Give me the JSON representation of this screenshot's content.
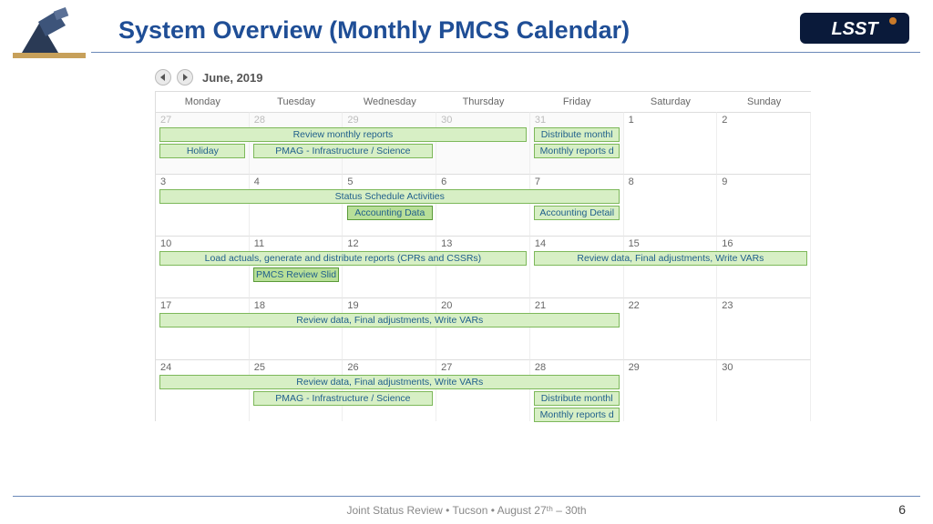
{
  "title": "System Overview (Monthly PMCS Calendar)",
  "footer": "Joint Status Review • Tucson  • August 27ᵗʰ – 30th",
  "page_number": "6",
  "calendar": {
    "month_label": "June, 2019",
    "col_unit_pct": 14.2857,
    "day_headers": [
      "Monday",
      "Tuesday",
      "Wednesday",
      "Thursday",
      "Friday",
      "Saturday",
      "Sunday"
    ],
    "weeks": [
      {
        "days": [
          {
            "n": "27",
            "off": true
          },
          {
            "n": "28",
            "off": true
          },
          {
            "n": "29",
            "off": true
          },
          {
            "n": "30",
            "off": true
          },
          {
            "n": "31",
            "off": true
          },
          {
            "n": "1",
            "off": false
          },
          {
            "n": "2",
            "off": false
          }
        ],
        "events": [
          {
            "label": "Review monthly reports",
            "start": 0,
            "span": 4,
            "row": 0,
            "dark": false
          },
          {
            "label": "Distribute monthl",
            "start": 4,
            "span": 1,
            "row": 0,
            "dark": false
          },
          {
            "label": "Holiday",
            "start": 0,
            "span": 1,
            "row": 1,
            "dark": false
          },
          {
            "label": "PMAG - Infrastructure / Science",
            "start": 1,
            "span": 2,
            "row": 1,
            "dark": false
          },
          {
            "label": "Monthly reports d",
            "start": 4,
            "span": 1,
            "row": 1,
            "dark": false
          }
        ]
      },
      {
        "days": [
          {
            "n": "3"
          },
          {
            "n": "4"
          },
          {
            "n": "5"
          },
          {
            "n": "6"
          },
          {
            "n": "7"
          },
          {
            "n": "8"
          },
          {
            "n": "9"
          }
        ],
        "events": [
          {
            "label": "Status Schedule Activities",
            "start": 0,
            "span": 5,
            "row": 0,
            "dark": false
          },
          {
            "label": "Accounting Data",
            "start": 2,
            "span": 1,
            "row": 1,
            "dark": true
          },
          {
            "label": "Accounting Detail",
            "start": 4,
            "span": 1,
            "row": 1,
            "dark": false
          }
        ]
      },
      {
        "days": [
          {
            "n": "10"
          },
          {
            "n": "11"
          },
          {
            "n": "12"
          },
          {
            "n": "13"
          },
          {
            "n": "14"
          },
          {
            "n": "15"
          },
          {
            "n": "16"
          }
        ],
        "events": [
          {
            "label": "Load actuals, generate and distribute reports (CPRs and CSSRs)",
            "start": 0,
            "span": 4,
            "row": 0,
            "dark": false
          },
          {
            "label": "Review data, Final adjustments, Write VARs",
            "start": 4,
            "span": 3,
            "row": 0,
            "dark": false
          },
          {
            "label": "PMCS Review Slid",
            "start": 1,
            "span": 1,
            "row": 1,
            "dark": true
          }
        ]
      },
      {
        "days": [
          {
            "n": "17"
          },
          {
            "n": "18"
          },
          {
            "n": "19"
          },
          {
            "n": "20"
          },
          {
            "n": "21"
          },
          {
            "n": "22"
          },
          {
            "n": "23"
          }
        ],
        "events": [
          {
            "label": "Review data, Final adjustments, Write VARs",
            "start": 0,
            "span": 5,
            "row": 0,
            "dark": false
          }
        ]
      },
      {
        "days": [
          {
            "n": "24"
          },
          {
            "n": "25"
          },
          {
            "n": "26"
          },
          {
            "n": "27"
          },
          {
            "n": "28"
          },
          {
            "n": "29"
          },
          {
            "n": "30"
          }
        ],
        "events": [
          {
            "label": "Review data, Final adjustments, Write VARs",
            "start": 0,
            "span": 5,
            "row": 0,
            "dark": false
          },
          {
            "label": "PMAG - Infrastructure / Science",
            "start": 1,
            "span": 2,
            "row": 1,
            "dark": false
          },
          {
            "label": "Distribute monthl",
            "start": 4,
            "span": 1,
            "row": 1,
            "dark": false
          },
          {
            "label": "Monthly reports d",
            "start": 4,
            "span": 1,
            "row": 2,
            "dark": false
          }
        ]
      }
    ]
  },
  "colors": {
    "title": "#1f4e96",
    "rule": "#6a88b8",
    "event_bg": "#d7efc5",
    "event_border": "#7db85a",
    "event_bg_dark": "#b8df98",
    "event_border_dark": "#5a9a38",
    "event_text": "#1f5f8b"
  }
}
